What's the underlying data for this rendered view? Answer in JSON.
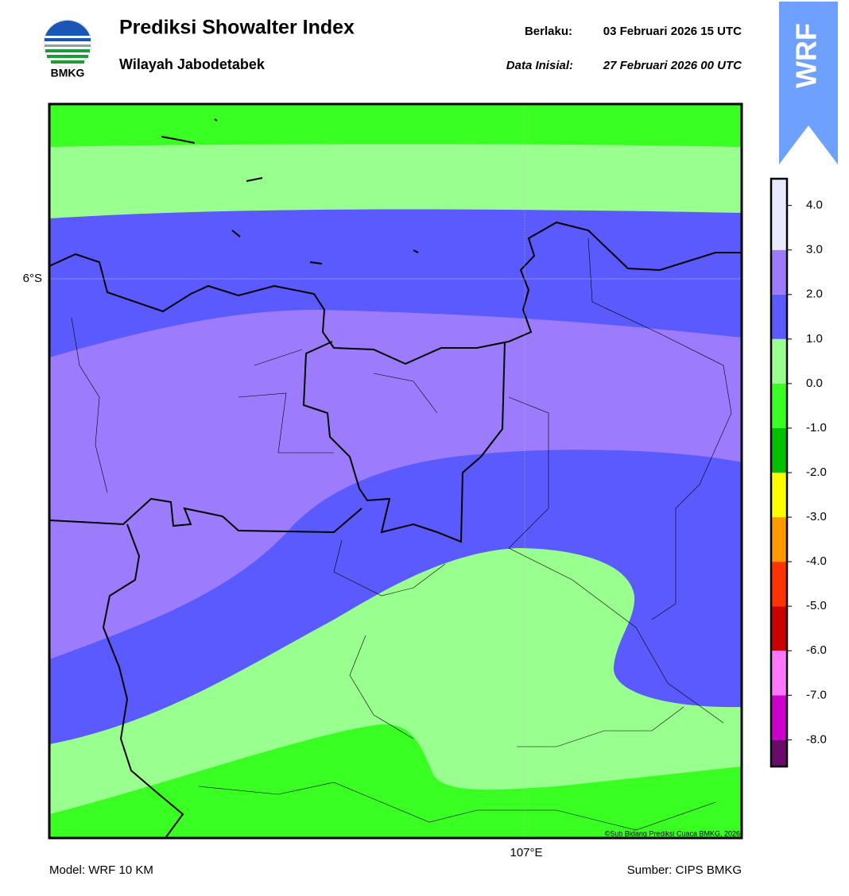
{
  "header": {
    "title": "Prediksi Showalter Index",
    "subtitle": "Wilayah Jabodetabek",
    "valid_label": "Berlaku:",
    "valid_time": "03 Februari 2026 15 UTC",
    "init_label": "Data Inisial:",
    "init_time": "27 Februari 2026 00 UTC"
  },
  "logo": {
    "text": "BMKG"
  },
  "badge": {
    "text": "WRF"
  },
  "map": {
    "lat_label": "6°S",
    "lon_label": "107°E",
    "credit": "©Sub Bidang Prediksi Cuaca BMKG, 2026"
  },
  "colorbar": {
    "lim": [
      -8.6,
      4.6
    ],
    "bins": [
      -8.6,
      -8,
      -7,
      -6,
      -5,
      -4,
      -3,
      -2,
      -1,
      0,
      1,
      2,
      3,
      4.6
    ],
    "colors": [
      "#6a0a6a",
      "#cc00cc",
      "#ff77ff",
      "#cc0000",
      "#ff3300",
      "#ff9900",
      "#ffff00",
      "#00c000",
      "#39ff22",
      "#99ff8f",
      "#5a5aff",
      "#9c7cfc",
      "#e8e8ff"
    ],
    "ticks": [
      {
        "value": 4,
        "label": "4.0"
      },
      {
        "value": 3,
        "label": "3.0"
      },
      {
        "value": 2,
        "label": "2.0"
      },
      {
        "value": 1,
        "label": "1.0"
      },
      {
        "value": 0,
        "label": "0.0"
      },
      {
        "value": -1,
        "label": "-1.0"
      },
      {
        "value": -2,
        "label": "-2.0"
      },
      {
        "value": -3,
        "label": "-3.0"
      },
      {
        "value": -4,
        "label": "-4.0"
      },
      {
        "value": -5,
        "label": "-5.0"
      },
      {
        "value": -6,
        "label": "-6.0"
      },
      {
        "value": -7,
        "label": "-7.0"
      },
      {
        "value": -8,
        "label": "-8.0"
      }
    ]
  },
  "footer": {
    "model": "Model: WRF 10 KM",
    "source": "Sumber: CIPS BMKG"
  }
}
